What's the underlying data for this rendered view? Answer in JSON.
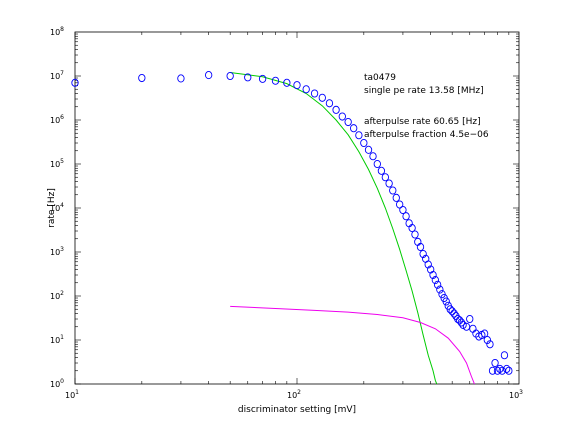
{
  "chart_data": {
    "type": "scatter",
    "xscale": "log",
    "yscale": "log",
    "xlim": [
      10,
      1000
    ],
    "ylim": [
      1,
      100000000
    ],
    "xlabel": "discriminator setting [mV]",
    "ylabel": "rate [Hz]",
    "x_ticks": [
      {
        "value": 10,
        "base": "10",
        "exp": "1"
      },
      {
        "value": 100,
        "base": "10",
        "exp": "2"
      },
      {
        "value": 1000,
        "base": "10",
        "exp": "3"
      }
    ],
    "y_ticks": [
      {
        "value": 1,
        "base": "10",
        "exp": "0"
      },
      {
        "value": 10,
        "base": "10",
        "exp": "1"
      },
      {
        "value": 100,
        "base": "10",
        "exp": "2"
      },
      {
        "value": 1000,
        "base": "10",
        "exp": "3"
      },
      {
        "value": 10000,
        "base": "10",
        "exp": "4"
      },
      {
        "value": 100000,
        "base": "10",
        "exp": "5"
      },
      {
        "value": 1000000,
        "base": "10",
        "exp": "6"
      },
      {
        "value": 10000000,
        "base": "10",
        "exp": "7"
      },
      {
        "value": 100000000,
        "base": "10",
        "exp": "8"
      }
    ],
    "annotations": [
      "ta0479",
      "single pe rate 13.58 [MHz]",
      "afterpulse rate 60.65 [Hz]",
      "afterpulse fraction 4.5e−06"
    ],
    "series": [
      {
        "kind": "markers",
        "color": "#0000ff",
        "points": [
          [
            10,
            7000000
          ],
          [
            20,
            9000000
          ],
          [
            30,
            8800000
          ],
          [
            40,
            10500000
          ],
          [
            50,
            10000000
          ],
          [
            60,
            9300000
          ],
          [
            70,
            8600000
          ],
          [
            80,
            7800000
          ],
          [
            90,
            7000000
          ],
          [
            100,
            6200000
          ],
          [
            110,
            5000000
          ],
          [
            120,
            4000000
          ],
          [
            130,
            3200000
          ],
          [
            140,
            2400000
          ],
          [
            150,
            1700000
          ],
          [
            160,
            1200000
          ],
          [
            170,
            900000
          ],
          [
            180,
            650000
          ],
          [
            190,
            450000
          ],
          [
            200,
            300000
          ],
          [
            210,
            210000
          ],
          [
            220,
            150000
          ],
          [
            230,
            100000
          ],
          [
            240,
            70000
          ],
          [
            250,
            50000
          ],
          [
            260,
            36000
          ],
          [
            270,
            25000
          ],
          [
            280,
            17000
          ],
          [
            290,
            12000
          ],
          [
            300,
            9000
          ],
          [
            310,
            6500
          ],
          [
            320,
            4500
          ],
          [
            330,
            3500
          ],
          [
            340,
            2500
          ],
          [
            350,
            1700
          ],
          [
            360,
            1300
          ],
          [
            370,
            900
          ],
          [
            380,
            700
          ],
          [
            390,
            520
          ],
          [
            400,
            400
          ],
          [
            410,
            300
          ],
          [
            420,
            230
          ],
          [
            430,
            180
          ],
          [
            440,
            140
          ],
          [
            450,
            110
          ],
          [
            460,
            90
          ],
          [
            470,
            75
          ],
          [
            480,
            60
          ],
          [
            490,
            50
          ],
          [
            500,
            45
          ],
          [
            510,
            40
          ],
          [
            520,
            35
          ],
          [
            530,
            30
          ],
          [
            540,
            28
          ],
          [
            550,
            25
          ],
          [
            560,
            22
          ],
          [
            580,
            20
          ],
          [
            600,
            30
          ],
          [
            620,
            18
          ],
          [
            640,
            14
          ],
          [
            660,
            12
          ],
          [
            680,
            13
          ],
          [
            700,
            14
          ],
          [
            720,
            10
          ],
          [
            740,
            8
          ],
          [
            760,
            2
          ],
          [
            780,
            3
          ],
          [
            800,
            2
          ],
          [
            820,
            2.2
          ],
          [
            840,
            2
          ],
          [
            860,
            4.5
          ],
          [
            880,
            2.2
          ],
          [
            900,
            2
          ]
        ]
      },
      {
        "kind": "fit-line",
        "color": "#00cc00",
        "points": [
          [
            50,
            12000000
          ],
          [
            70,
            9600000
          ],
          [
            90,
            6700000
          ],
          [
            110,
            4000000
          ],
          [
            130,
            2100000
          ],
          [
            150,
            1000000
          ],
          [
            170,
            460000
          ],
          [
            190,
            190000
          ],
          [
            210,
            75000
          ],
          [
            230,
            28000
          ],
          [
            250,
            10000
          ],
          [
            270,
            3400
          ],
          [
            290,
            1150
          ],
          [
            310,
            380
          ],
          [
            330,
            130
          ],
          [
            350,
            42
          ],
          [
            370,
            13
          ],
          [
            390,
            4.5
          ],
          [
            410,
            2
          ],
          [
            420,
            1.2
          ],
          [
            430,
            0.9
          ]
        ]
      },
      {
        "kind": "fit-line",
        "color": "#ee00ee",
        "points": [
          [
            50,
            58
          ],
          [
            80,
            52
          ],
          [
            120,
            47
          ],
          [
            170,
            43
          ],
          [
            230,
            38
          ],
          [
            300,
            32
          ],
          [
            360,
            25
          ],
          [
            420,
            18
          ],
          [
            480,
            11
          ],
          [
            540,
            5.5
          ],
          [
            580,
            3
          ],
          [
            610,
            1.5
          ],
          [
            630,
            1
          ]
        ]
      }
    ]
  }
}
